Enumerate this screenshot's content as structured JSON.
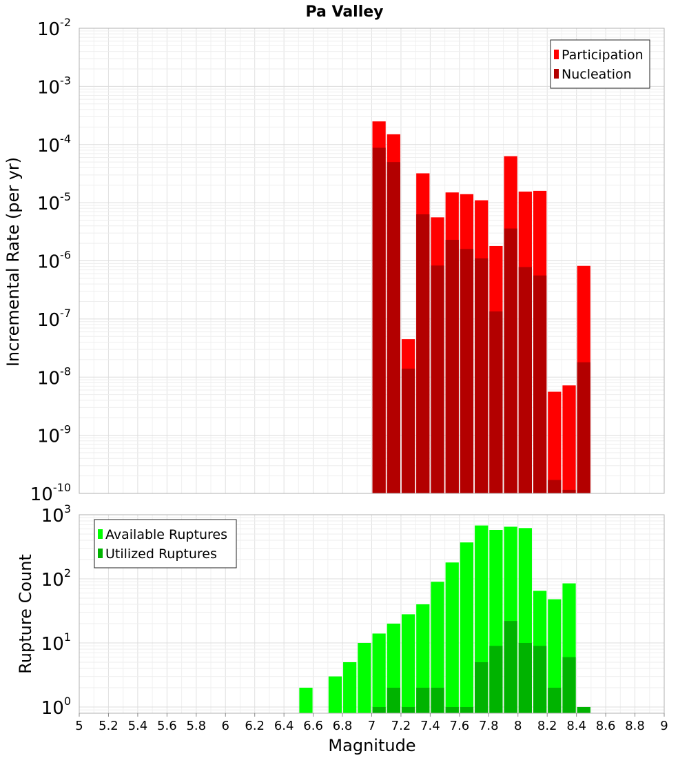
{
  "chart_data": [
    {
      "type": "bar",
      "title": "Pa Valley",
      "xlabel": "",
      "ylabel": "Incremental Rate (per yr)",
      "yscale": "log",
      "ylim": [
        1e-10,
        0.01
      ],
      "xlim": [
        5,
        9
      ],
      "yticks": [
        {
          "base": "10",
          "exp": "-10"
        },
        {
          "base": "10",
          "exp": "-9"
        },
        {
          "base": "10",
          "exp": "-8"
        },
        {
          "base": "10",
          "exp": "-7"
        },
        {
          "base": "10",
          "exp": "-6"
        },
        {
          "base": "10",
          "exp": "-5"
        },
        {
          "base": "10",
          "exp": "-4"
        },
        {
          "base": "10",
          "exp": "-3"
        },
        {
          "base": "10",
          "exp": "-2"
        }
      ],
      "legend_position": "top-right",
      "grid": true,
      "x": [
        7.05,
        7.15,
        7.25,
        7.35,
        7.45,
        7.55,
        7.65,
        7.75,
        7.85,
        7.95,
        8.05,
        8.15,
        8.25,
        8.35,
        8.45
      ],
      "series": [
        {
          "name": "Participation",
          "color": "#ff0000",
          "values": [
            0.00025,
            0.00015,
            4.5e-08,
            3.2e-05,
            5.6e-06,
            1.5e-05,
            1.4e-05,
            1.1e-05,
            1.8e-06,
            6.3e-05,
            1.55e-05,
            1.6e-05,
            5.6e-09,
            7.2e-09,
            8.2e-07
          ]
        },
        {
          "name": "Nucleation",
          "color": "#b30000",
          "values": [
            8.8e-05,
            5e-05,
            1.4e-08,
            6.3e-06,
            8.3e-07,
            2.3e-06,
            1.6e-06,
            1.1e-06,
            1.35e-07,
            3.6e-06,
            7.8e-07,
            5.6e-07,
            1.7e-10,
            1.15e-10,
            1.8e-08
          ]
        }
      ]
    },
    {
      "type": "bar",
      "title": "",
      "xlabel": "Magnitude",
      "ylabel": "Rupture Count",
      "yscale": "log",
      "ylim": [
        0.8,
        1000
      ],
      "xlim": [
        5,
        9
      ],
      "xticks": [
        "5",
        "5.2",
        "5.4",
        "5.6",
        "5.8",
        "6",
        "6.2",
        "6.4",
        "6.6",
        "6.8",
        "7",
        "7.2",
        "7.4",
        "7.6",
        "7.8",
        "8",
        "8.2",
        "8.4",
        "8.6",
        "8.8",
        "9"
      ],
      "yticks": [
        {
          "base": "10",
          "exp": "0"
        },
        {
          "base": "10",
          "exp": "1"
        },
        {
          "base": "10",
          "exp": "2"
        },
        {
          "base": "10",
          "exp": "3"
        }
      ],
      "legend_position": "top-left",
      "grid": true,
      "series": [
        {
          "name": "Available Ruptures",
          "color": "#00ff00",
          "x": [
            6.55,
            6.75,
            6.85,
            6.95,
            7.05,
            7.15,
            7.25,
            7.35,
            7.45,
            7.55,
            7.65,
            7.75,
            7.85,
            7.95,
            8.05,
            8.15,
            8.25,
            8.35,
            8.45
          ],
          "values": [
            2,
            3,
            5,
            10,
            14,
            20,
            28,
            40,
            90,
            180,
            370,
            680,
            580,
            650,
            620,
            65,
            48,
            85,
            1
          ]
        },
        {
          "name": "Utilized Ruptures",
          "color": "#00b300",
          "x": [
            7.05,
            7.15,
            7.25,
            7.35,
            7.45,
            7.55,
            7.65,
            7.75,
            7.85,
            7.95,
            8.05,
            8.15,
            8.25,
            8.35,
            8.45
          ],
          "values": [
            1,
            2,
            1,
            2,
            2,
            1,
            1,
            5,
            9,
            22,
            10,
            9,
            2,
            6,
            1
          ]
        }
      ]
    }
  ]
}
